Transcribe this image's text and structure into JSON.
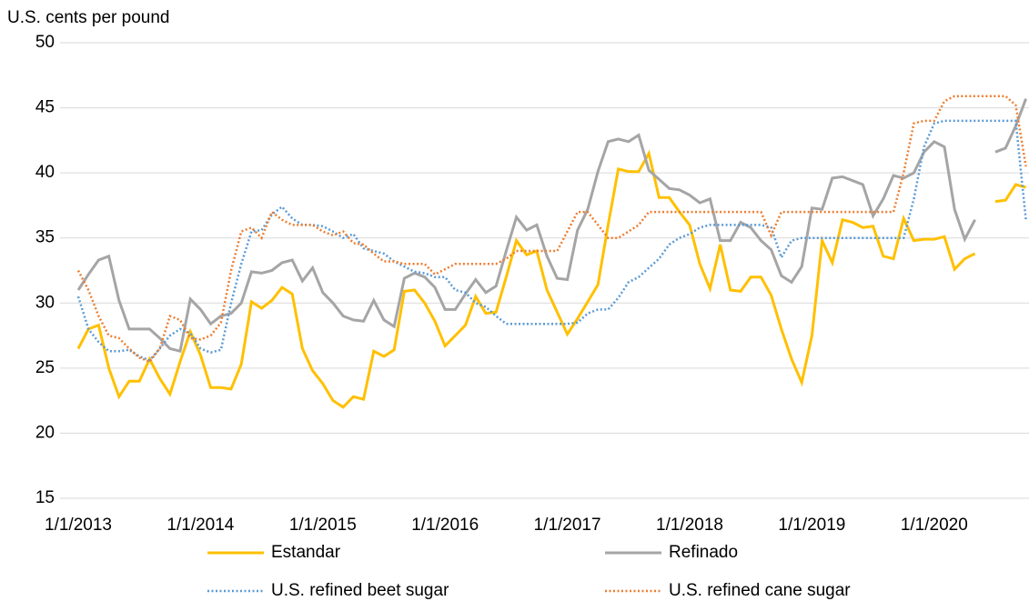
{
  "chart_data": {
    "type": "line",
    "y_axis_label": "U.S. cents per pound",
    "categories": [
      "1/1/2013",
      null,
      null,
      null,
      null,
      null,
      null,
      null,
      null,
      null,
      null,
      null,
      "1/1/2014",
      null,
      null,
      null,
      null,
      null,
      null,
      null,
      null,
      null,
      null,
      null,
      "1/1/2015",
      null,
      null,
      null,
      null,
      null,
      null,
      null,
      null,
      null,
      null,
      null,
      "1/1/2016",
      null,
      null,
      null,
      null,
      null,
      null,
      null,
      null,
      null,
      null,
      null,
      "1/1/2017",
      null,
      null,
      null,
      null,
      null,
      null,
      null,
      null,
      null,
      null,
      null,
      "1/1/2018",
      null,
      null,
      null,
      null,
      null,
      null,
      null,
      null,
      null,
      null,
      null,
      "1/1/2019",
      null,
      null,
      null,
      null,
      null,
      null,
      null,
      null,
      null,
      null,
      null,
      "1/1/2020",
      null,
      null,
      null,
      null,
      null,
      null,
      null,
      null,
      null
    ],
    "ylim": [
      15,
      50
    ],
    "yticks": [
      15,
      20,
      25,
      30,
      35,
      40,
      45,
      50
    ],
    "grid": true,
    "legend": "bottom",
    "series": [
      {
        "name": "Estandar",
        "color": "#ffc000",
        "dash": "solid",
        "values": [
          26.5,
          28,
          28.3,
          25,
          22.8,
          24,
          24,
          25.7,
          24.2,
          23,
          25.5,
          27.8,
          26,
          23.5,
          23.5,
          23.4,
          25.3,
          30.1,
          29.6,
          30.2,
          31.2,
          30.7,
          26.5,
          24.8,
          23.8,
          22.5,
          22,
          22.8,
          22.6,
          26.3,
          25.9,
          26.4,
          30.9,
          31,
          30,
          28.6,
          26.7,
          27.5,
          28.3,
          30.5,
          29.2,
          29.3,
          32,
          34.8,
          33.7,
          34,
          31,
          29.3,
          27.6,
          28.8,
          30.1,
          31.4,
          36,
          40.3,
          40.1,
          40.1,
          41.5,
          38.1,
          38.1,
          37,
          36,
          33,
          31.1,
          34.5,
          31,
          30.9,
          32,
          32,
          30.6,
          28,
          25.7,
          23.9,
          27.5,
          34.8,
          33.1,
          36.4,
          36.2,
          35.8,
          35.9,
          33.6,
          33.4,
          36.5,
          34.8,
          34.9,
          34.9,
          35.1,
          32.6,
          33.4,
          33.8,
          null,
          37.8,
          37.9,
          39.1,
          38.9
        ]
      },
      {
        "name": "Refinado",
        "color": "#a5a5a5",
        "dash": "solid",
        "values": [
          31,
          32.2,
          33.3,
          33.6,
          30.2,
          28,
          28,
          28,
          27.3,
          26.5,
          26.3,
          30.3,
          29.5,
          28.4,
          29,
          29.2,
          30,
          32.4,
          32.3,
          32.5,
          33.1,
          33.3,
          31.7,
          32.7,
          30.8,
          30,
          29,
          28.7,
          28.6,
          30.2,
          28.7,
          28.2,
          31.9,
          32.3,
          32,
          31.2,
          29.5,
          29.5,
          30.7,
          31.8,
          30.8,
          31.3,
          34,
          36.6,
          35.6,
          36,
          33.6,
          31.9,
          31.8,
          35.6,
          37.2,
          40.1,
          42.4,
          42.6,
          42.4,
          42.9,
          40.2,
          39.5,
          38.8,
          38.7,
          38.3,
          37.7,
          38,
          34.8,
          34.8,
          36.2,
          35.8,
          34.8,
          34.1,
          32.1,
          31.6,
          32.8,
          37.3,
          37.2,
          39.6,
          39.7,
          39.4,
          39.1,
          36.7,
          38,
          39.8,
          39.6,
          40,
          41.6,
          42.4,
          42,
          37.2,
          34.9,
          36.4,
          null,
          41.6,
          41.9,
          43.6,
          45.7
        ]
      },
      {
        "name": "U.S. refined beet sugar",
        "color": "#5b9bd5",
        "dash": "dotted",
        "values": [
          30.5,
          28,
          27,
          26.3,
          26.3,
          26.4,
          25.9,
          25.6,
          26.5,
          27.5,
          28,
          27.7,
          26.5,
          26.2,
          26.4,
          30,
          33,
          35.5,
          35.6,
          36.8,
          37.4,
          36.5,
          36,
          36,
          35.9,
          35.5,
          35,
          35.3,
          34.2,
          34,
          33.8,
          33.2,
          32.8,
          32.4,
          32.3,
          32,
          32,
          31,
          30.8,
          30,
          29.7,
          29,
          28.4,
          28.4,
          28.4,
          28.4,
          28.4,
          28.4,
          28.4,
          28.5,
          29.2,
          29.5,
          29.5,
          30.4,
          31.6,
          32,
          32.7,
          33.4,
          34.5,
          35,
          35.3,
          35.8,
          36,
          36,
          36,
          36,
          36,
          36,
          35.8,
          33.5,
          34.8,
          35,
          35,
          35,
          35,
          35,
          35,
          35,
          35,
          35,
          35,
          35,
          38,
          42,
          43.8,
          44,
          44,
          44,
          44,
          44,
          44,
          44,
          44,
          36.4
        ]
      },
      {
        "name": "U.S. refined cane sugar",
        "color": "#ed7d31",
        "dash": "dotted",
        "values": [
          32.5,
          31,
          29,
          27.5,
          27.3,
          26.5,
          25.8,
          25.5,
          26.5,
          29,
          28.7,
          27.3,
          27.2,
          27.5,
          28.5,
          32.5,
          35.5,
          35.8,
          35,
          37,
          36.4,
          36,
          36,
          36,
          35.5,
          35.2,
          35.5,
          34.6,
          34.5,
          33.8,
          33.2,
          33.2,
          33,
          33,
          33,
          32.2,
          32.6,
          33,
          33,
          33,
          33,
          33,
          33.4,
          34,
          34,
          34,
          34,
          34,
          35.5,
          37,
          37,
          36,
          35,
          35,
          35.5,
          36,
          37,
          37,
          37,
          37,
          37,
          37,
          37,
          37,
          37,
          37,
          37,
          37,
          35.2,
          37,
          37,
          37,
          37,
          37,
          37,
          37,
          37,
          37,
          37,
          37,
          37,
          40,
          43.8,
          44,
          44,
          45.5,
          45.9,
          45.9,
          45.9,
          45.9,
          45.9,
          45.9,
          45.2,
          40.5
        ]
      }
    ]
  }
}
